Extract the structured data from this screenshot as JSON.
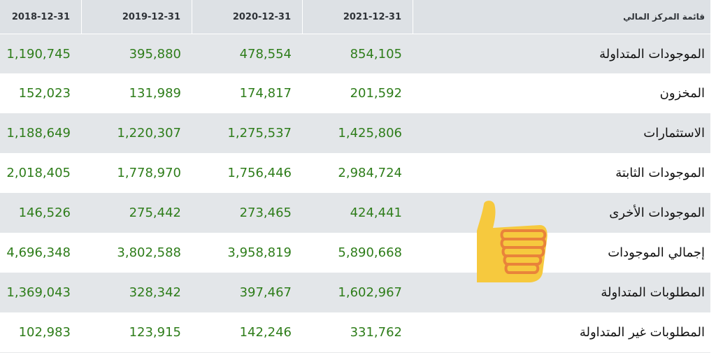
{
  "header": {
    "label": "قائمة المركز المالي",
    "years": [
      "2018-12-31",
      "2019-12-31",
      "2020-12-31",
      "2021-12-31"
    ]
  },
  "rows": [
    {
      "label": "الموجودات المتداولة",
      "values": [
        "1,190,745",
        "395,880",
        "478,554",
        "854,105"
      ]
    },
    {
      "label": "المخزون",
      "values": [
        "152,023",
        "131,989",
        "174,817",
        "201,592"
      ]
    },
    {
      "label": "الاستثمارات",
      "values": [
        "1,188,649",
        "1,220,307",
        "1,275,537",
        "1,425,806"
      ]
    },
    {
      "label": "الموجودات الثابتة",
      "values": [
        "2,018,405",
        "1,778,970",
        "1,756,446",
        "2,984,724"
      ]
    },
    {
      "label": "الموجودات الأخرى",
      "values": [
        "146,526",
        "275,442",
        "273,465",
        "424,441"
      ]
    },
    {
      "label": "إجمالي الموجودات",
      "values": [
        "4,696,348",
        "3,802,588",
        "3,958,819",
        "5,890,668"
      ]
    },
    {
      "label": "المطلوبات المتداولة",
      "values": [
        "1,369,043",
        "328,342",
        "397,467",
        "1,602,967"
      ]
    },
    {
      "label": "المطلوبات غير المتداولة",
      "values": [
        "102,983",
        "123,915",
        "142,246",
        "331,762"
      ]
    }
  ],
  "colors": {
    "value_text": "#2e7d1a",
    "header_bg": "#dde1e5",
    "shaded_row_bg": "#e3e6e9"
  },
  "sticker": {
    "icon": "thumbs-up-icon"
  }
}
